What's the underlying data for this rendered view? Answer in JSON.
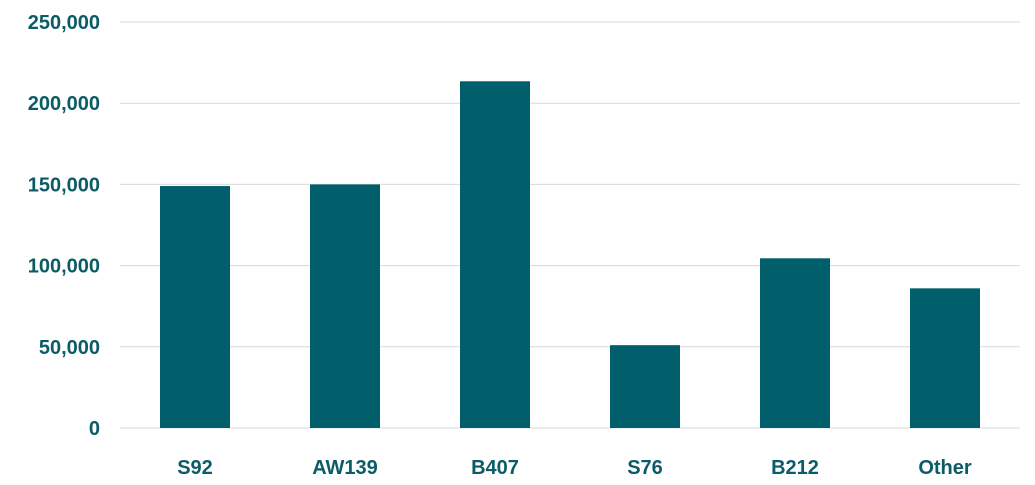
{
  "chart_data": {
    "type": "bar",
    "title": "",
    "xlabel": "",
    "ylabel": "",
    "categories": [
      "S92",
      "AW139",
      "B407",
      "S76",
      "B212",
      "Other"
    ],
    "values": [
      149000,
      150000,
      213500,
      51000,
      104500,
      86000
    ],
    "ylim": [
      0,
      250000
    ],
    "yticks": [
      0,
      50000,
      100000,
      150000,
      200000,
      250000
    ],
    "ytick_labels": [
      "0",
      "50,000",
      "100,000",
      "150,000",
      "200,000",
      "250,000"
    ],
    "grid": true,
    "legend": "none",
    "colors": {
      "bar": "#005f6b",
      "text": "#0b5c66",
      "grid": "#d9d9d9"
    }
  }
}
